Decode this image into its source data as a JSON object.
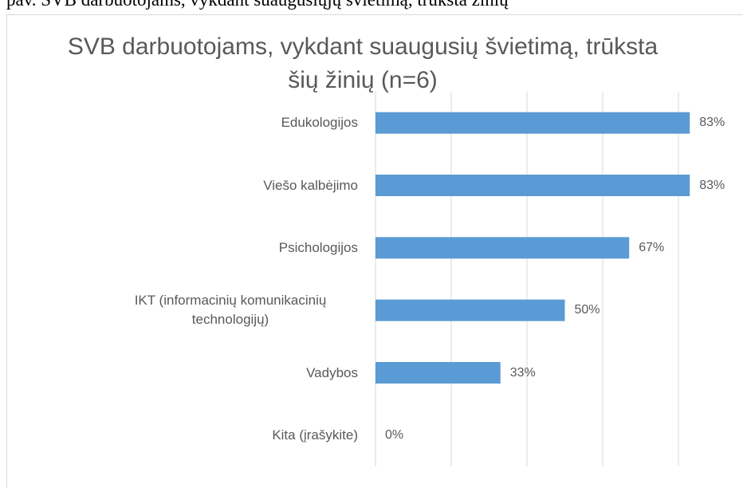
{
  "caption": "pav. SVB darbuotojams, vykdant suaugusiųjų švietimą, trūksta žinių",
  "chart_data": {
    "type": "barh",
    "title": "SVB darbuotojams, vykdant suaugusių švietimą, trūksta šių žinių (n=6)",
    "categories": [
      "Edukologijos",
      "Viešo kalbėjimo",
      "Psichologijos",
      "IKT (informacinių komunikacinių technologijų)",
      "Vadybos",
      "Kita (įrašykite)"
    ],
    "values": [
      83,
      83,
      67,
      50,
      33,
      0
    ],
    "value_labels": [
      "83%",
      "83%",
      "67%",
      "50%",
      "33%",
      "0%"
    ],
    "color": "#5b9bd5",
    "xlim": [
      0,
      90
    ],
    "xticks": [
      0,
      20,
      40,
      60,
      80
    ],
    "grid": true
  }
}
